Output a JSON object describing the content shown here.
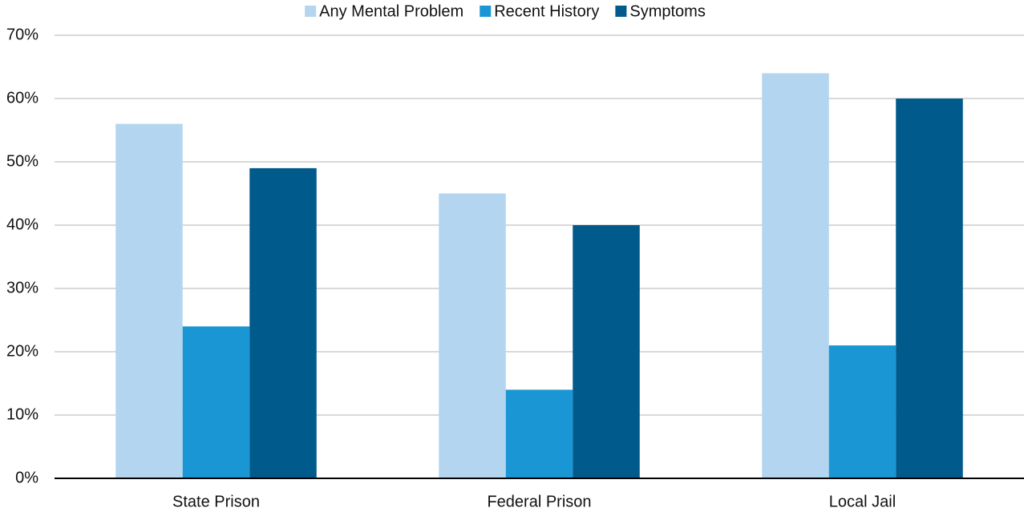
{
  "chart_data": {
    "type": "bar",
    "categories": [
      "State Prison",
      "Federal Prison",
      "Local Jail"
    ],
    "series": [
      {
        "name": "Any Mental Problem",
        "color": "#b3d5ef",
        "values": [
          56,
          45,
          64
        ]
      },
      {
        "name": "Recent History",
        "color": "#1a96d4",
        "values": [
          24,
          14,
          21
        ]
      },
      {
        "name": "Symptoms",
        "color": "#005a8c",
        "values": [
          49,
          40,
          60
        ]
      }
    ],
    "ylim": [
      0,
      70
    ],
    "yticks": [
      {
        "value": 0,
        "label": "0%"
      },
      {
        "value": 10,
        "label": "10%"
      },
      {
        "value": 20,
        "label": "20%"
      },
      {
        "value": 30,
        "label": "30%"
      },
      {
        "value": 40,
        "label": "40%"
      },
      {
        "value": 50,
        "label": "50%"
      },
      {
        "value": 60,
        "label": "60%"
      },
      {
        "value": 70,
        "label": "70%"
      }
    ],
    "grid": true,
    "legend": "top"
  }
}
